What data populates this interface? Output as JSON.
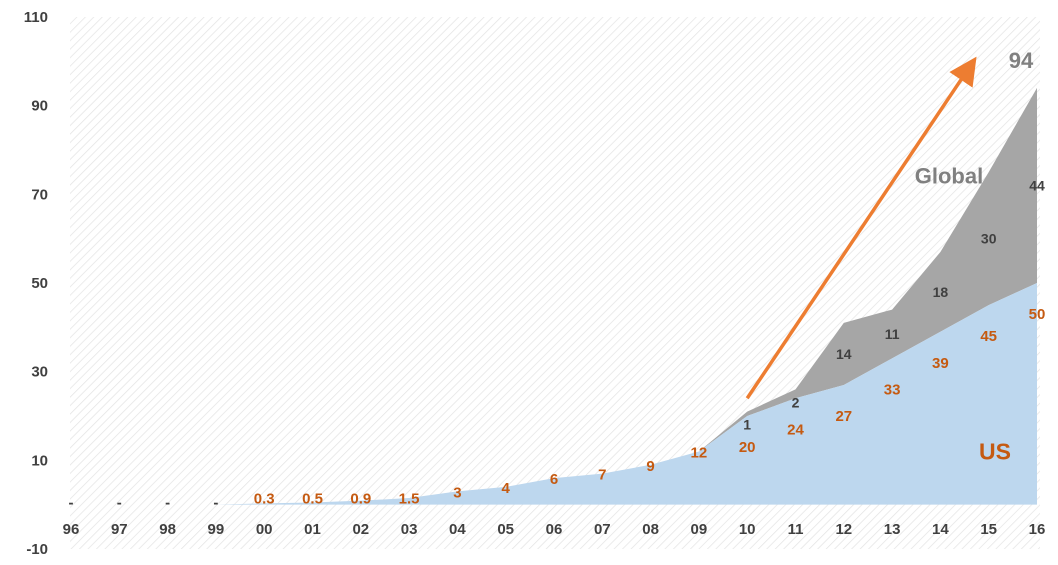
{
  "chart_data": {
    "type": "area",
    "title": "",
    "xlabel": "",
    "ylabel": "",
    "ylim": [
      -10,
      110
    ],
    "yticks": [
      -10,
      10,
      30,
      50,
      70,
      90,
      110
    ],
    "grid": false,
    "background": "hatched",
    "categories": [
      "96",
      "97",
      "98",
      "99",
      "00",
      "01",
      "02",
      "03",
      "04",
      "05",
      "06",
      "07",
      "08",
      "09",
      "10",
      "11",
      "12",
      "13",
      "14",
      "15",
      "16"
    ],
    "series": [
      {
        "name": "US",
        "color": "#bdd7ee",
        "label_color": "#c55a11",
        "values": [
          0,
          0,
          0,
          0,
          0.3,
          0.5,
          0.9,
          1.5,
          3,
          4,
          6,
          7,
          9,
          12,
          20,
          24,
          27,
          33,
          39,
          45,
          50
        ],
        "labels": [
          "-",
          "-",
          "-",
          "-",
          "0.3",
          "0.5",
          "0.9",
          "1.5",
          "3",
          "4",
          "6",
          "7",
          "9",
          "12",
          "20",
          "24",
          "27",
          "33",
          "39",
          "45",
          "50"
        ]
      },
      {
        "name": "Global",
        "color": "#a6a6a6",
        "label_color": "#404040",
        "values": [
          0,
          0,
          0,
          0,
          0,
          0,
          0,
          0,
          0,
          0,
          0,
          0,
          0,
          0,
          1,
          2,
          14,
          11,
          18,
          30,
          44
        ],
        "labels": [
          "",
          "",
          "",
          "",
          "",
          "",
          "",
          "",
          "",
          "",
          "",
          "",
          "",
          "",
          "1",
          "2",
          "14",
          "11",
          "18",
          "30",
          "44"
        ]
      }
    ],
    "annotations": [
      {
        "text": "94",
        "color": "#808080"
      },
      {
        "text": "Global",
        "color": "#808080"
      },
      {
        "text": "US",
        "color": "#c55a11"
      }
    ],
    "arrow": {
      "color": "#ed7d31",
      "from": {
        "x": "10",
        "y": 24
      },
      "to": {
        "x": "15",
        "y": 100
      }
    }
  }
}
